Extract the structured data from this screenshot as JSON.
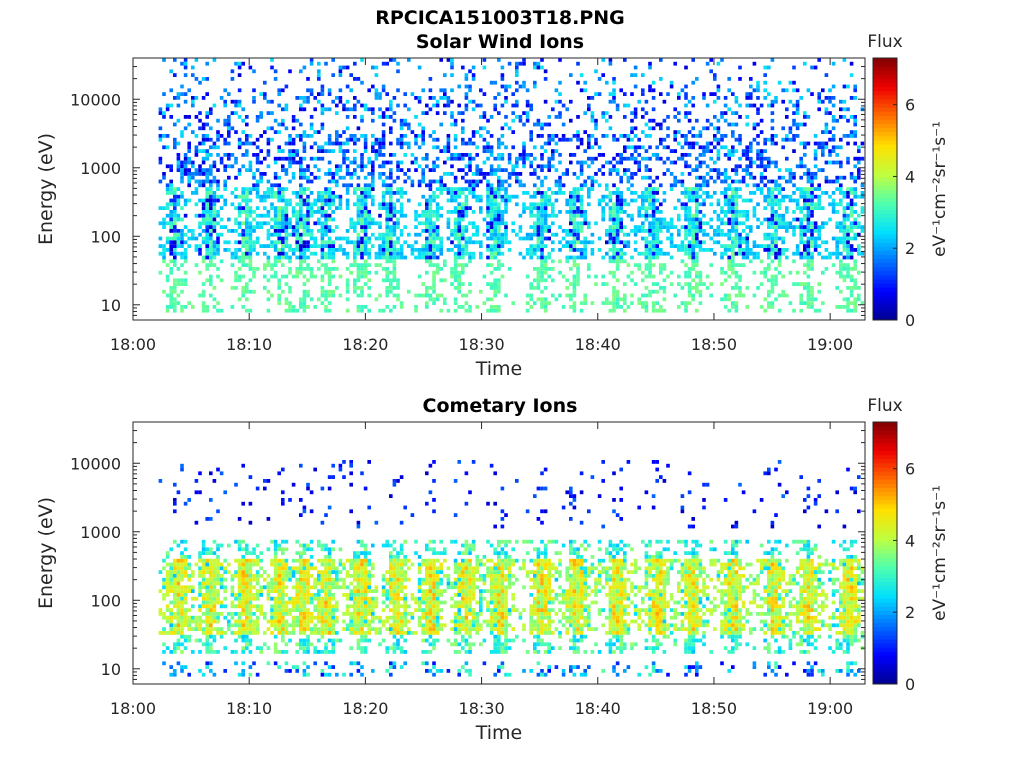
{
  "figure": {
    "title": "RPCICA151003T18.PNG"
  },
  "colormap": [
    "#00008f",
    "#0000ff",
    "#006fff",
    "#00dfff",
    "#4fffaf",
    "#bfff3f",
    "#ffdf00",
    "#ff6f00",
    "#ef0000",
    "#800000"
  ],
  "chart_data": [
    {
      "type": "heatmap",
      "title": "Solar Wind Ions",
      "xlabel": "Time",
      "ylabel": "Energy (eV)",
      "x_ticks": [
        "18:00",
        "18:10",
        "18:20",
        "18:30",
        "18:40",
        "18:50",
        "19:00"
      ],
      "x_tick_minutes": [
        0,
        10,
        20,
        30,
        40,
        50,
        60
      ],
      "xlim_minutes": [
        0,
        63
      ],
      "y_scale": "log",
      "y_ticks": [
        "10",
        "100",
        "1000",
        "10000"
      ],
      "y_tick_values": [
        10,
        100,
        1000,
        10000
      ],
      "ylim": [
        6,
        40000
      ],
      "colorbar": {
        "title": "Flux",
        "label": "eV⁻¹cm⁻²sr⁻¹s⁻¹",
        "ticks": [
          "0",
          "2",
          "4",
          "6"
        ],
        "tick_values": [
          0,
          2,
          4,
          6
        ],
        "range": [
          0,
          7.3
        ]
      },
      "data_start_minute": 2.2,
      "burst_centers_minutes": [
        3.5,
        6.5,
        9.5,
        12.5,
        14.5,
        16.5,
        19.5,
        22,
        25.5,
        28,
        31,
        35,
        38,
        41.5,
        44.5,
        48,
        51.5,
        55,
        58,
        61.5
      ],
      "populations": {
        "low_band_eV": [
          40,
          500
        ],
        "low_band_flux": [
          2.0,
          3.6
        ],
        "scatter_eV": [
          500,
          40000
        ],
        "scatter_flux": [
          0.5,
          2.6
        ]
      }
    },
    {
      "type": "heatmap",
      "title": "Cometary Ions",
      "xlabel": "Time",
      "ylabel": "Energy (eV)",
      "x_ticks": [
        "18:00",
        "18:10",
        "18:20",
        "18:30",
        "18:40",
        "18:50",
        "19:00"
      ],
      "x_tick_minutes": [
        0,
        10,
        20,
        30,
        40,
        50,
        60
      ],
      "xlim_minutes": [
        0,
        63
      ],
      "y_scale": "log",
      "y_ticks": [
        "10",
        "100",
        "1000",
        "10000"
      ],
      "y_tick_values": [
        10,
        100,
        1000,
        10000
      ],
      "ylim": [
        6,
        40000
      ],
      "colorbar": {
        "title": "Flux",
        "label": "eV⁻¹cm⁻²sr⁻¹s⁻¹",
        "ticks": [
          "0",
          "2",
          "4",
          "6"
        ],
        "tick_values": [
          0,
          2,
          4,
          6
        ],
        "range": [
          0,
          7.3
        ]
      },
      "data_start_minute": 2.2,
      "burst_centers_minutes": [
        3.8,
        6.5,
        9.5,
        12.5,
        14.5,
        16.5,
        19.5,
        22.5,
        25.5,
        28.5,
        31.5,
        35,
        38,
        41.5,
        45,
        48,
        51.5,
        55,
        58,
        61.5
      ],
      "populations": {
        "core_eV": [
          30,
          400
        ],
        "core_flux": [
          3.5,
          5.3
        ],
        "halo_eV": [
          15,
          700
        ],
        "halo_flux": [
          2.2,
          3.8
        ],
        "sparse_eV": [
          1000,
          11000
        ],
        "sparse_flux": [
          0.4,
          1.6
        ]
      }
    }
  ]
}
